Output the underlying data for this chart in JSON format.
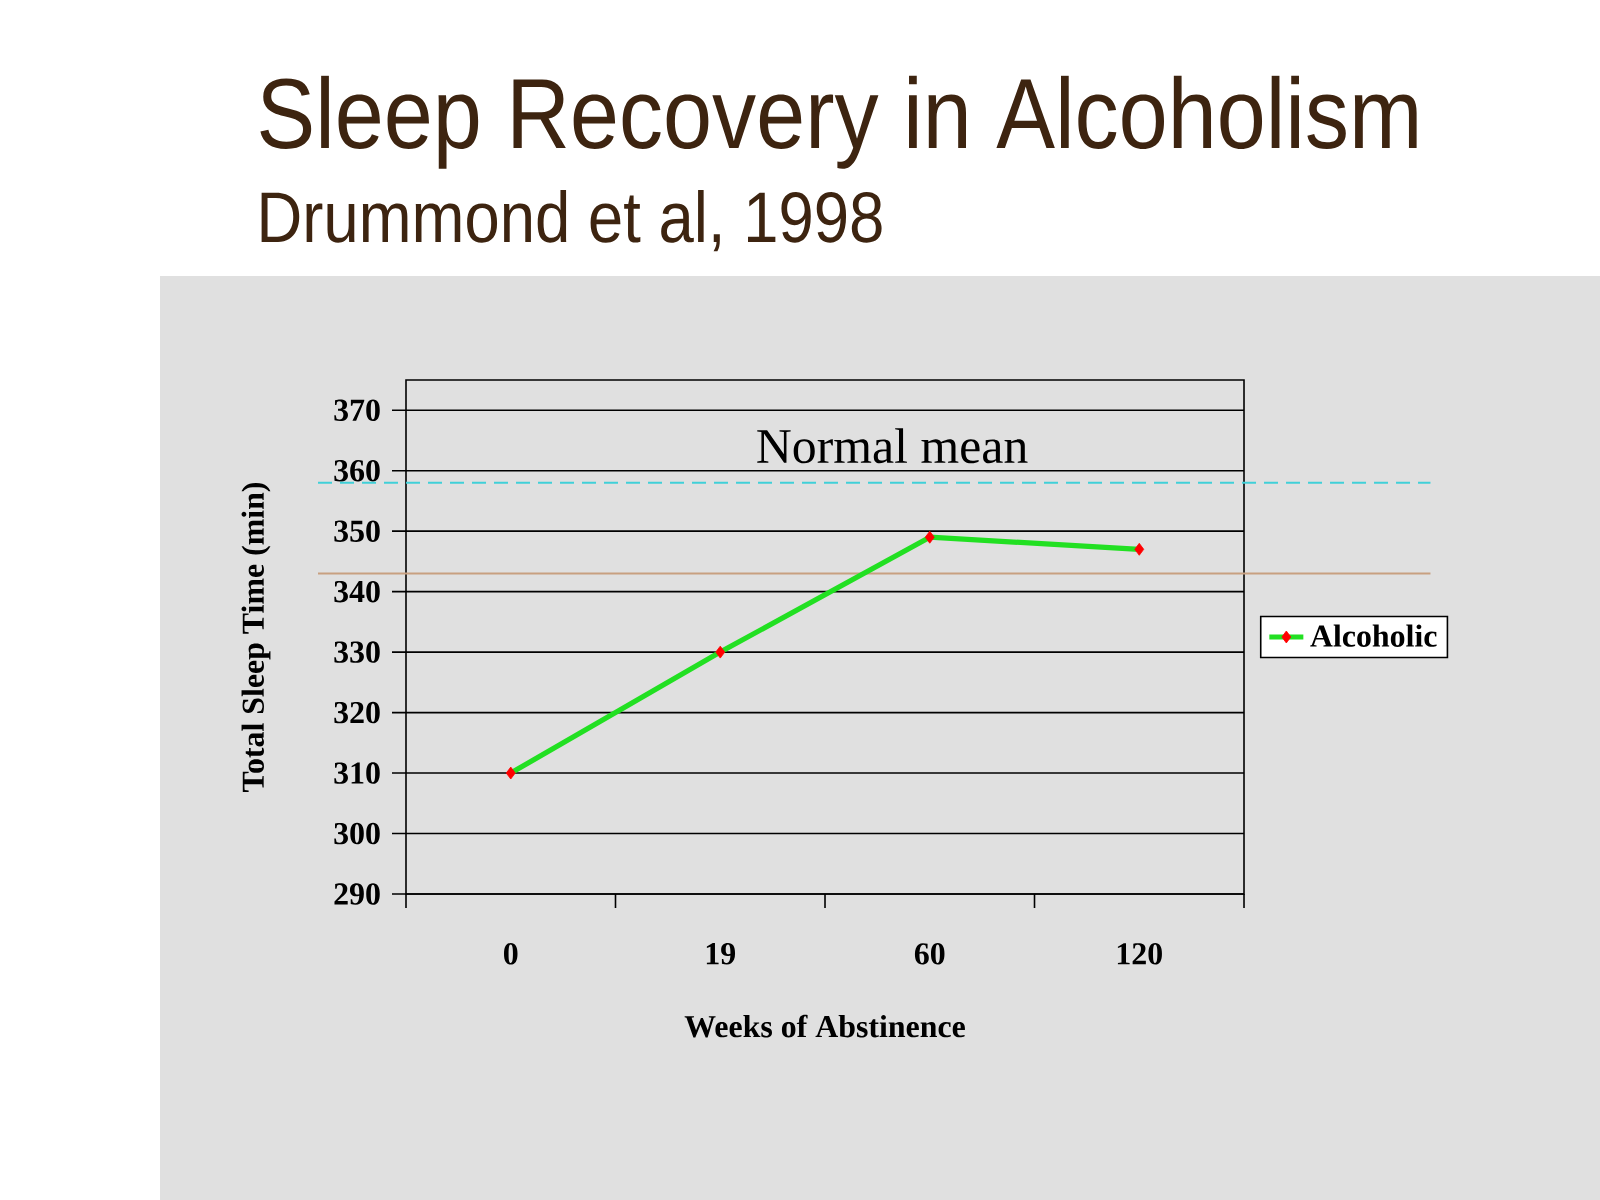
{
  "chart_data": {
    "type": "line",
    "title": "Sleep Recovery in Alcoholism",
    "subtitle": "Drummond et al, 1998",
    "xlabel": "Weeks of Abstinence",
    "ylabel": "Total Sleep Time (min)",
    "categories": [
      "0",
      "19",
      "60",
      "120"
    ],
    "series": [
      {
        "name": "Alcoholic",
        "color": "#22e022",
        "values": [
          310,
          330,
          349,
          347
        ]
      }
    ],
    "ylim": [
      290,
      375
    ],
    "yticks": [
      290,
      300,
      310,
      320,
      330,
      340,
      350,
      360,
      370
    ],
    "grid": "y",
    "legend": "right",
    "marker": "diamond",
    "ref_lines": [
      {
        "axis": "y",
        "value": 358,
        "label": "Normal mean",
        "color": "#40d0d8",
        "line_style": "dashed"
      },
      {
        "axis": "y",
        "value": 343,
        "color": "#c8a080",
        "line_style": "solid"
      }
    ]
  }
}
